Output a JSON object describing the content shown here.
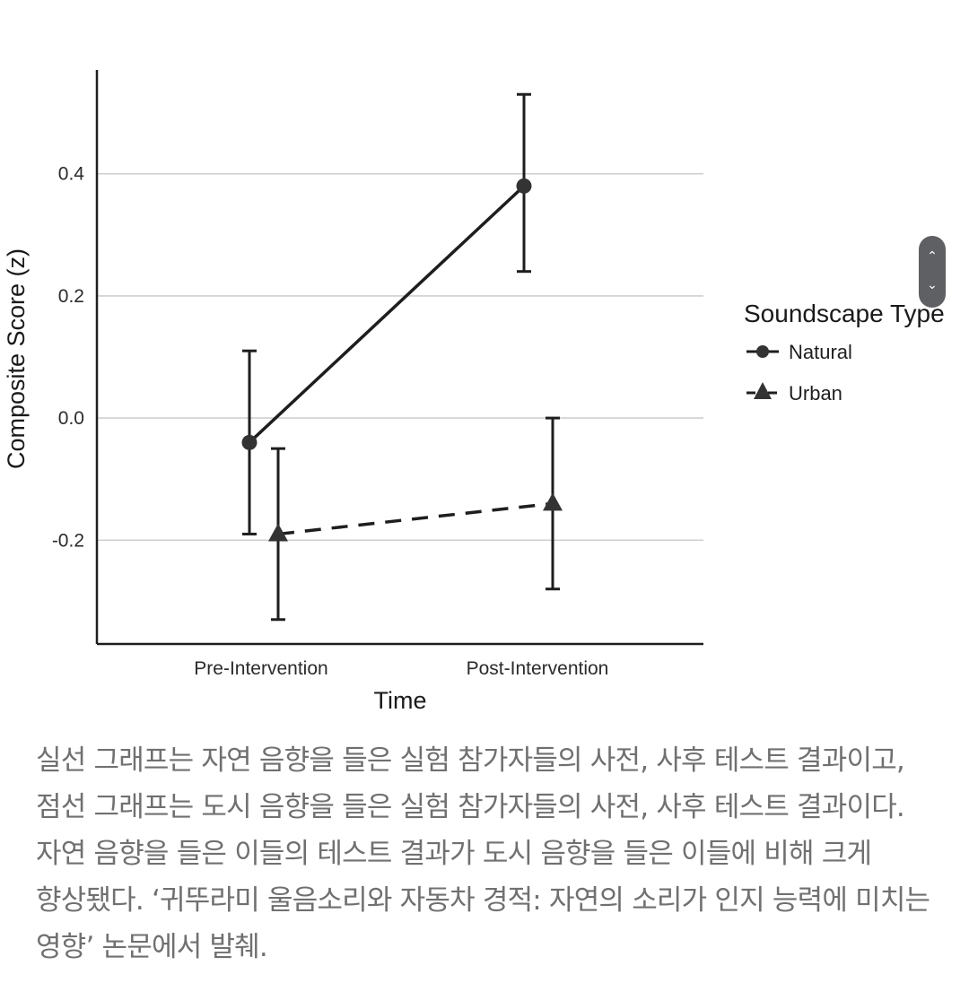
{
  "chart_data": {
    "type": "line",
    "title": "",
    "xlabel": "Time",
    "ylabel": "Composite Score (z)",
    "categories": [
      "Pre-Intervention",
      "Post-Intervention"
    ],
    "ylim": [
      -0.37,
      0.57
    ],
    "yticks": [
      -0.2,
      0.0,
      0.2,
      0.4
    ],
    "ytick_labels": [
      "-0.2",
      "0.0",
      "0.2",
      "0.4"
    ],
    "grid": "horizontal",
    "legend": {
      "title": "Soundscape Type",
      "placement": "right"
    },
    "series": [
      {
        "name": "Natural",
        "marker": "circle",
        "line_style": "solid",
        "color": "#1e1e1e",
        "values": [
          -0.04,
          0.38
        ],
        "error_low": [
          -0.19,
          0.24
        ],
        "error_high": [
          0.11,
          0.53
        ]
      },
      {
        "name": "Urban",
        "marker": "triangle",
        "line_style": "dashed",
        "color": "#1e1e1e",
        "values": [
          -0.19,
          -0.14
        ],
        "error_low": [
          -0.33,
          -0.28
        ],
        "error_high": [
          -0.05,
          0.0
        ]
      }
    ]
  },
  "colors": {
    "grid": "#cfcfcf",
    "axis": "#1e1e1e",
    "caption_text": "#707070",
    "scroll_widget": "#5f6064"
  },
  "scroll_widget": {
    "up_icon": "chevron-up-icon",
    "down_icon": "chevron-down-icon"
  },
  "caption": {
    "text": "실선 그래프는 자연 음향을 들은 실험 참가자들의 사전, 사후 테스트 결과이고, 점선 그래프는 도시 음향을 들은 실험 참가자들의 사전, 사후 테스트 결과이다. 자연 음향을 들은 이들의 테스트 결과가 도시 음향을 들은 이들에 비해 크게 향상됐다. ‘귀뚜라미 울음소리와 자동차 경적: 자연의 소리가 인지 능력에 미치는 영향’ 논문에서 발췌."
  }
}
